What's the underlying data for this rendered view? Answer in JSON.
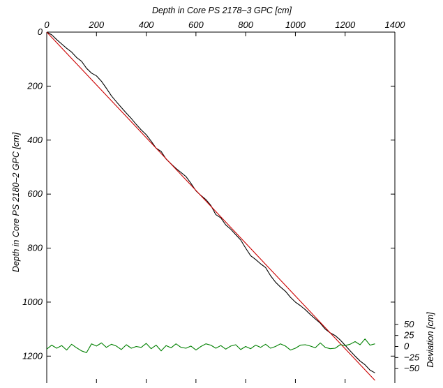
{
  "chart_data": {
    "type": "line",
    "title": "",
    "xlabel": "Depth in Core PS 2178–3 GPC [cm]",
    "ylabel": "Depth in Core PS 2180–2 GPC [cm]",
    "y2label": "Deviation [cm]",
    "x_axis_position": "top",
    "y_inverted": true,
    "xlim": [
      0,
      1400
    ],
    "ylim": [
      0,
      1300
    ],
    "y2lim": [
      -75,
      75
    ],
    "xticks": [
      0,
      200,
      400,
      600,
      800,
      1000,
      1200,
      1400
    ],
    "xtick_labels": [
      "0",
      "200",
      "400",
      "600",
      "800",
      "1000",
      "1200",
      "1400"
    ],
    "yticks": [
      0,
      200,
      400,
      600,
      800,
      1000,
      1200
    ],
    "ytick_labels": [
      "0",
      "200",
      "400",
      "600",
      "800",
      "1000",
      "1200"
    ],
    "y2ticks": [
      50,
      25,
      0,
      -25,
      -50
    ],
    "y2tick_labels": [
      "50",
      "25",
      "0",
      "−25",
      "−50"
    ],
    "grid": false,
    "series": [
      {
        "color": "#000000",
        "axis": "left",
        "x": [
          0,
          20,
          40,
          60,
          80,
          100,
          120,
          140,
          160,
          180,
          200,
          220,
          240,
          260,
          280,
          300,
          320,
          340,
          360,
          380,
          400,
          420,
          440,
          460,
          480,
          500,
          520,
          540,
          560,
          580,
          600,
          620,
          640,
          660,
          680,
          700,
          720,
          740,
          760,
          780,
          800,
          820,
          840,
          860,
          880,
          900,
          920,
          940,
          960,
          980,
          1000,
          1020,
          1040,
          1060,
          1080,
          1100,
          1120,
          1140,
          1160,
          1180,
          1200,
          1220,
          1240,
          1260,
          1280,
          1300,
          1320
        ],
        "y": [
          0,
          10,
          28,
          44,
          60,
          74,
          94,
          108,
          134,
          152,
          162,
          182,
          208,
          236,
          258,
          279,
          300,
          320,
          342,
          362,
          380,
          404,
          430,
          442,
          470,
          488,
          505,
          520,
          535,
          560,
          588,
          605,
          620,
          642,
          676,
          688,
          714,
          730,
          750,
          770,
          800,
          828,
          842,
          858,
          872,
          902,
          926,
          944,
          960,
          982,
          1000,
          1013,
          1028,
          1046,
          1062,
          1078,
          1100,
          1114,
          1124,
          1140,
          1160,
          1180,
          1200,
          1218,
          1232,
          1252,
          1262
        ]
      },
      {
        "color": "#cc0000",
        "axis": "left",
        "x": [
          0,
          1320
        ],
        "y": [
          0,
          1290
        ]
      },
      {
        "color": "#008000",
        "axis": "right",
        "x": [
          0,
          20,
          40,
          60,
          80,
          100,
          120,
          140,
          160,
          180,
          200,
          220,
          240,
          260,
          280,
          300,
          320,
          340,
          360,
          380,
          400,
          420,
          440,
          460,
          480,
          500,
          520,
          540,
          560,
          580,
          600,
          620,
          640,
          660,
          680,
          700,
          720,
          740,
          760,
          780,
          800,
          820,
          840,
          860,
          880,
          900,
          920,
          940,
          960,
          980,
          1000,
          1020,
          1040,
          1060,
          1080,
          1100,
          1120,
          1140,
          1160,
          1180,
          1200,
          1220,
          1240,
          1260,
          1280,
          1300,
          1320
        ],
        "y": [
          -6,
          3,
          -4,
          2,
          -8,
          5,
          -3,
          -10,
          -14,
          6,
          1,
          8,
          -2,
          5,
          1,
          -7,
          4,
          -4,
          0,
          -2,
          7,
          -5,
          3,
          -10,
          2,
          -3,
          6,
          -2,
          -4,
          1,
          -8,
          0,
          6,
          3,
          -4,
          2,
          -6,
          1,
          4,
          -7,
          0,
          -5,
          3,
          -2,
          5,
          -4,
          0,
          6,
          1,
          -8,
          -4,
          3,
          4,
          1,
          -3,
          8,
          -2,
          -5,
          -4,
          4,
          2,
          5,
          11,
          4,
          17,
          3,
          6
        ]
      }
    ]
  }
}
